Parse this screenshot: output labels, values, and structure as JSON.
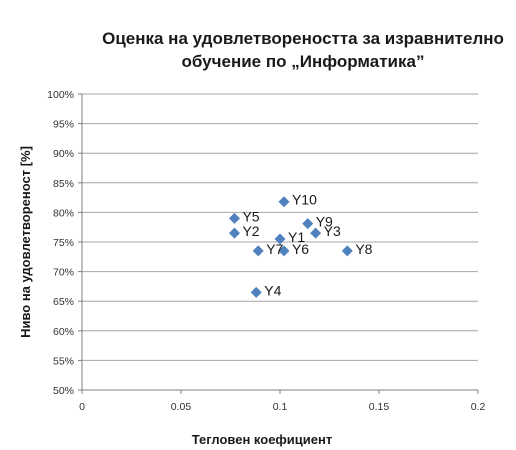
{
  "chart_data": {
    "type": "scatter",
    "title_lines": [
      "Оценка на удовлетвореността за изравнително",
      "обучение по „Информатика”"
    ],
    "xlabel": "Тегловен коефициент",
    "ylabel": "Ниво на удовлетвореност [%]",
    "xlim": [
      0,
      0.2
    ],
    "ylim": [
      0.5,
      1.0
    ],
    "x_ticks": [
      "0",
      "0.05",
      "0.1",
      "0.15",
      "0.2"
    ],
    "y_ticks": [
      "50%",
      "55%",
      "60%",
      "65%",
      "70%",
      "75%",
      "80%",
      "85%",
      "90%",
      "95%",
      "100%"
    ],
    "grid": "horizontal",
    "marker_color": "#4f81bd",
    "points": [
      {
        "label": "Y1",
        "x": 0.1,
        "y": 0.755
      },
      {
        "label": "Y2",
        "x": 0.077,
        "y": 0.765
      },
      {
        "label": "Y3",
        "x": 0.118,
        "y": 0.765
      },
      {
        "label": "Y4",
        "x": 0.088,
        "y": 0.665
      },
      {
        "label": "Y5",
        "x": 0.077,
        "y": 0.79
      },
      {
        "label": "Y6",
        "x": 0.102,
        "y": 0.735
      },
      {
        "label": "Y7",
        "x": 0.089,
        "y": 0.735
      },
      {
        "label": "Y8",
        "x": 0.134,
        "y": 0.735
      },
      {
        "label": "Y9",
        "x": 0.114,
        "y": 0.781
      },
      {
        "label": "Y10",
        "x": 0.102,
        "y": 0.818
      }
    ]
  }
}
